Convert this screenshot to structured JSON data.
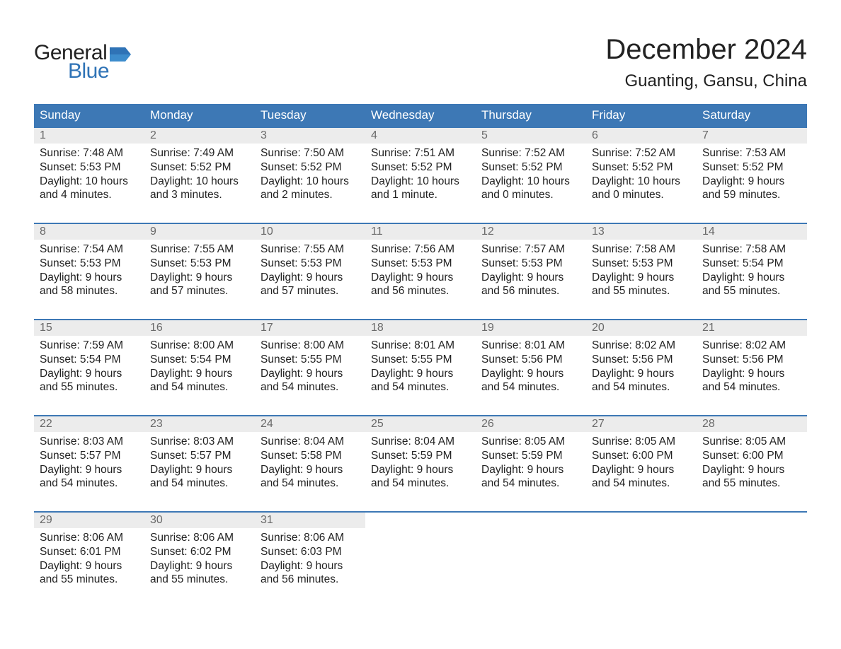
{
  "brand": {
    "text_general": "General",
    "text_blue": "Blue",
    "flag_color": "#2f73b6",
    "text_color_dark": "#222222"
  },
  "header": {
    "month_title": "December 2024",
    "location": "Guanting, Gansu, China"
  },
  "colors": {
    "header_bg": "#3d78b5",
    "header_text": "#ffffff",
    "week_border": "#3d78b5",
    "daynum_bg": "#ececec",
    "daynum_text": "#6a6a6a",
    "body_text": "#222222",
    "page_bg": "#ffffff"
  },
  "typography": {
    "month_title_fontsize": 40,
    "location_fontsize": 24,
    "dow_fontsize": 17,
    "daynum_fontsize": 16,
    "body_fontsize": 15.5,
    "font_family": "Arial"
  },
  "days_of_week": [
    "Sunday",
    "Monday",
    "Tuesday",
    "Wednesday",
    "Thursday",
    "Friday",
    "Saturday"
  ],
  "weeks": [
    [
      {
        "n": "1",
        "sunrise": "Sunrise: 7:48 AM",
        "sunset": "Sunset: 5:53 PM",
        "daylight1": "Daylight: 10 hours",
        "daylight2": "and 4 minutes."
      },
      {
        "n": "2",
        "sunrise": "Sunrise: 7:49 AM",
        "sunset": "Sunset: 5:52 PM",
        "daylight1": "Daylight: 10 hours",
        "daylight2": "and 3 minutes."
      },
      {
        "n": "3",
        "sunrise": "Sunrise: 7:50 AM",
        "sunset": "Sunset: 5:52 PM",
        "daylight1": "Daylight: 10 hours",
        "daylight2": "and 2 minutes."
      },
      {
        "n": "4",
        "sunrise": "Sunrise: 7:51 AM",
        "sunset": "Sunset: 5:52 PM",
        "daylight1": "Daylight: 10 hours",
        "daylight2": "and 1 minute."
      },
      {
        "n": "5",
        "sunrise": "Sunrise: 7:52 AM",
        "sunset": "Sunset: 5:52 PM",
        "daylight1": "Daylight: 10 hours",
        "daylight2": "and 0 minutes."
      },
      {
        "n": "6",
        "sunrise": "Sunrise: 7:52 AM",
        "sunset": "Sunset: 5:52 PM",
        "daylight1": "Daylight: 10 hours",
        "daylight2": "and 0 minutes."
      },
      {
        "n": "7",
        "sunrise": "Sunrise: 7:53 AM",
        "sunset": "Sunset: 5:52 PM",
        "daylight1": "Daylight: 9 hours",
        "daylight2": "and 59 minutes."
      }
    ],
    [
      {
        "n": "8",
        "sunrise": "Sunrise: 7:54 AM",
        "sunset": "Sunset: 5:53 PM",
        "daylight1": "Daylight: 9 hours",
        "daylight2": "and 58 minutes."
      },
      {
        "n": "9",
        "sunrise": "Sunrise: 7:55 AM",
        "sunset": "Sunset: 5:53 PM",
        "daylight1": "Daylight: 9 hours",
        "daylight2": "and 57 minutes."
      },
      {
        "n": "10",
        "sunrise": "Sunrise: 7:55 AM",
        "sunset": "Sunset: 5:53 PM",
        "daylight1": "Daylight: 9 hours",
        "daylight2": "and 57 minutes."
      },
      {
        "n": "11",
        "sunrise": "Sunrise: 7:56 AM",
        "sunset": "Sunset: 5:53 PM",
        "daylight1": "Daylight: 9 hours",
        "daylight2": "and 56 minutes."
      },
      {
        "n": "12",
        "sunrise": "Sunrise: 7:57 AM",
        "sunset": "Sunset: 5:53 PM",
        "daylight1": "Daylight: 9 hours",
        "daylight2": "and 56 minutes."
      },
      {
        "n": "13",
        "sunrise": "Sunrise: 7:58 AM",
        "sunset": "Sunset: 5:53 PM",
        "daylight1": "Daylight: 9 hours",
        "daylight2": "and 55 minutes."
      },
      {
        "n": "14",
        "sunrise": "Sunrise: 7:58 AM",
        "sunset": "Sunset: 5:54 PM",
        "daylight1": "Daylight: 9 hours",
        "daylight2": "and 55 minutes."
      }
    ],
    [
      {
        "n": "15",
        "sunrise": "Sunrise: 7:59 AM",
        "sunset": "Sunset: 5:54 PM",
        "daylight1": "Daylight: 9 hours",
        "daylight2": "and 55 minutes."
      },
      {
        "n": "16",
        "sunrise": "Sunrise: 8:00 AM",
        "sunset": "Sunset: 5:54 PM",
        "daylight1": "Daylight: 9 hours",
        "daylight2": "and 54 minutes."
      },
      {
        "n": "17",
        "sunrise": "Sunrise: 8:00 AM",
        "sunset": "Sunset: 5:55 PM",
        "daylight1": "Daylight: 9 hours",
        "daylight2": "and 54 minutes."
      },
      {
        "n": "18",
        "sunrise": "Sunrise: 8:01 AM",
        "sunset": "Sunset: 5:55 PM",
        "daylight1": "Daylight: 9 hours",
        "daylight2": "and 54 minutes."
      },
      {
        "n": "19",
        "sunrise": "Sunrise: 8:01 AM",
        "sunset": "Sunset: 5:56 PM",
        "daylight1": "Daylight: 9 hours",
        "daylight2": "and 54 minutes."
      },
      {
        "n": "20",
        "sunrise": "Sunrise: 8:02 AM",
        "sunset": "Sunset: 5:56 PM",
        "daylight1": "Daylight: 9 hours",
        "daylight2": "and 54 minutes."
      },
      {
        "n": "21",
        "sunrise": "Sunrise: 8:02 AM",
        "sunset": "Sunset: 5:56 PM",
        "daylight1": "Daylight: 9 hours",
        "daylight2": "and 54 minutes."
      }
    ],
    [
      {
        "n": "22",
        "sunrise": "Sunrise: 8:03 AM",
        "sunset": "Sunset: 5:57 PM",
        "daylight1": "Daylight: 9 hours",
        "daylight2": "and 54 minutes."
      },
      {
        "n": "23",
        "sunrise": "Sunrise: 8:03 AM",
        "sunset": "Sunset: 5:57 PM",
        "daylight1": "Daylight: 9 hours",
        "daylight2": "and 54 minutes."
      },
      {
        "n": "24",
        "sunrise": "Sunrise: 8:04 AM",
        "sunset": "Sunset: 5:58 PM",
        "daylight1": "Daylight: 9 hours",
        "daylight2": "and 54 minutes."
      },
      {
        "n": "25",
        "sunrise": "Sunrise: 8:04 AM",
        "sunset": "Sunset: 5:59 PM",
        "daylight1": "Daylight: 9 hours",
        "daylight2": "and 54 minutes."
      },
      {
        "n": "26",
        "sunrise": "Sunrise: 8:05 AM",
        "sunset": "Sunset: 5:59 PM",
        "daylight1": "Daylight: 9 hours",
        "daylight2": "and 54 minutes."
      },
      {
        "n": "27",
        "sunrise": "Sunrise: 8:05 AM",
        "sunset": "Sunset: 6:00 PM",
        "daylight1": "Daylight: 9 hours",
        "daylight2": "and 54 minutes."
      },
      {
        "n": "28",
        "sunrise": "Sunrise: 8:05 AM",
        "sunset": "Sunset: 6:00 PM",
        "daylight1": "Daylight: 9 hours",
        "daylight2": "and 55 minutes."
      }
    ],
    [
      {
        "n": "29",
        "sunrise": "Sunrise: 8:06 AM",
        "sunset": "Sunset: 6:01 PM",
        "daylight1": "Daylight: 9 hours",
        "daylight2": "and 55 minutes."
      },
      {
        "n": "30",
        "sunrise": "Sunrise: 8:06 AM",
        "sunset": "Sunset: 6:02 PM",
        "daylight1": "Daylight: 9 hours",
        "daylight2": "and 55 minutes."
      },
      {
        "n": "31",
        "sunrise": "Sunrise: 8:06 AM",
        "sunset": "Sunset: 6:03 PM",
        "daylight1": "Daylight: 9 hours",
        "daylight2": "and 56 minutes."
      },
      null,
      null,
      null,
      null
    ]
  ]
}
